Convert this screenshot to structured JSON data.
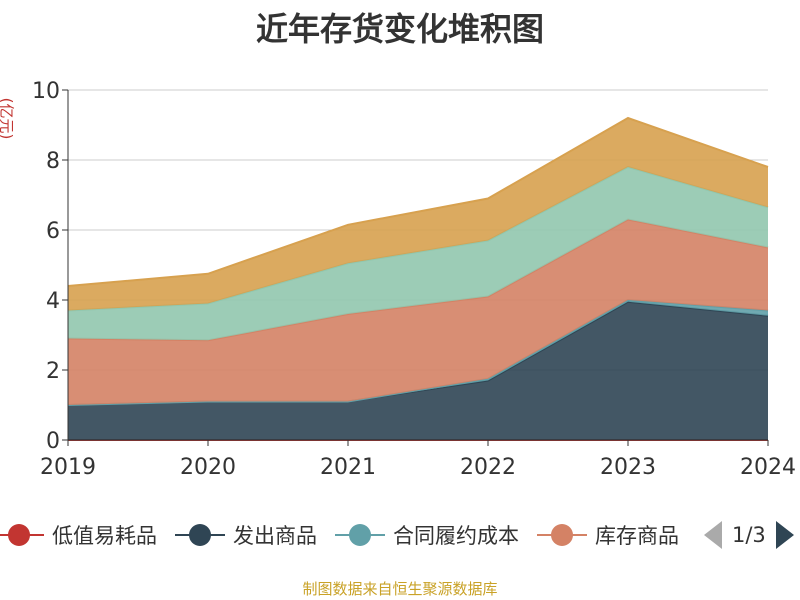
{
  "title": "近年存货变化堆积图",
  "unit_label": "(亿元)",
  "source_note": "制图数据来自恒生聚源数据库",
  "legend": {
    "items": [
      {
        "label": "低值易耗品",
        "color": "#c23531"
      },
      {
        "label": "发出商品",
        "color": "#2f4554"
      },
      {
        "label": "合同履约成本",
        "color": "#61a0a8"
      },
      {
        "label": "库存商品",
        "color": "#d48265"
      }
    ],
    "page_text": "1/3"
  },
  "chart_data": {
    "type": "area",
    "stacked": true,
    "x": [
      "2019",
      "2020",
      "2021",
      "2022",
      "2023",
      "2024"
    ],
    "ylim": [
      0,
      10
    ],
    "yticks": [
      0,
      2,
      4,
      6,
      8,
      10
    ],
    "grid": true,
    "series": [
      {
        "name": "低值易耗品",
        "color": "#c23531",
        "values": [
          0,
          0,
          0,
          0,
          0,
          0
        ]
      },
      {
        "name": "发出商品",
        "color": "#2f4554",
        "values": [
          1.0,
          1.1,
          1.1,
          1.7,
          3.95,
          3.55
        ]
      },
      {
        "name": "合同履约成本",
        "color": "#61a0a8",
        "values": [
          0,
          0,
          0,
          0.05,
          0.05,
          0.15
        ]
      },
      {
        "name": "库存商品",
        "color": "#d48265",
        "values": [
          1.9,
          1.75,
          2.5,
          2.35,
          2.3,
          1.8
        ]
      },
      {
        "name": "",
        "color": "#91c7ae",
        "values": [
          0.8,
          1.05,
          1.45,
          1.6,
          1.5,
          1.15
        ]
      },
      {
        "name": "",
        "color": "#d7a14f",
        "values": [
          0.7,
          0.85,
          1.1,
          1.2,
          1.4,
          1.15
        ]
      }
    ]
  }
}
